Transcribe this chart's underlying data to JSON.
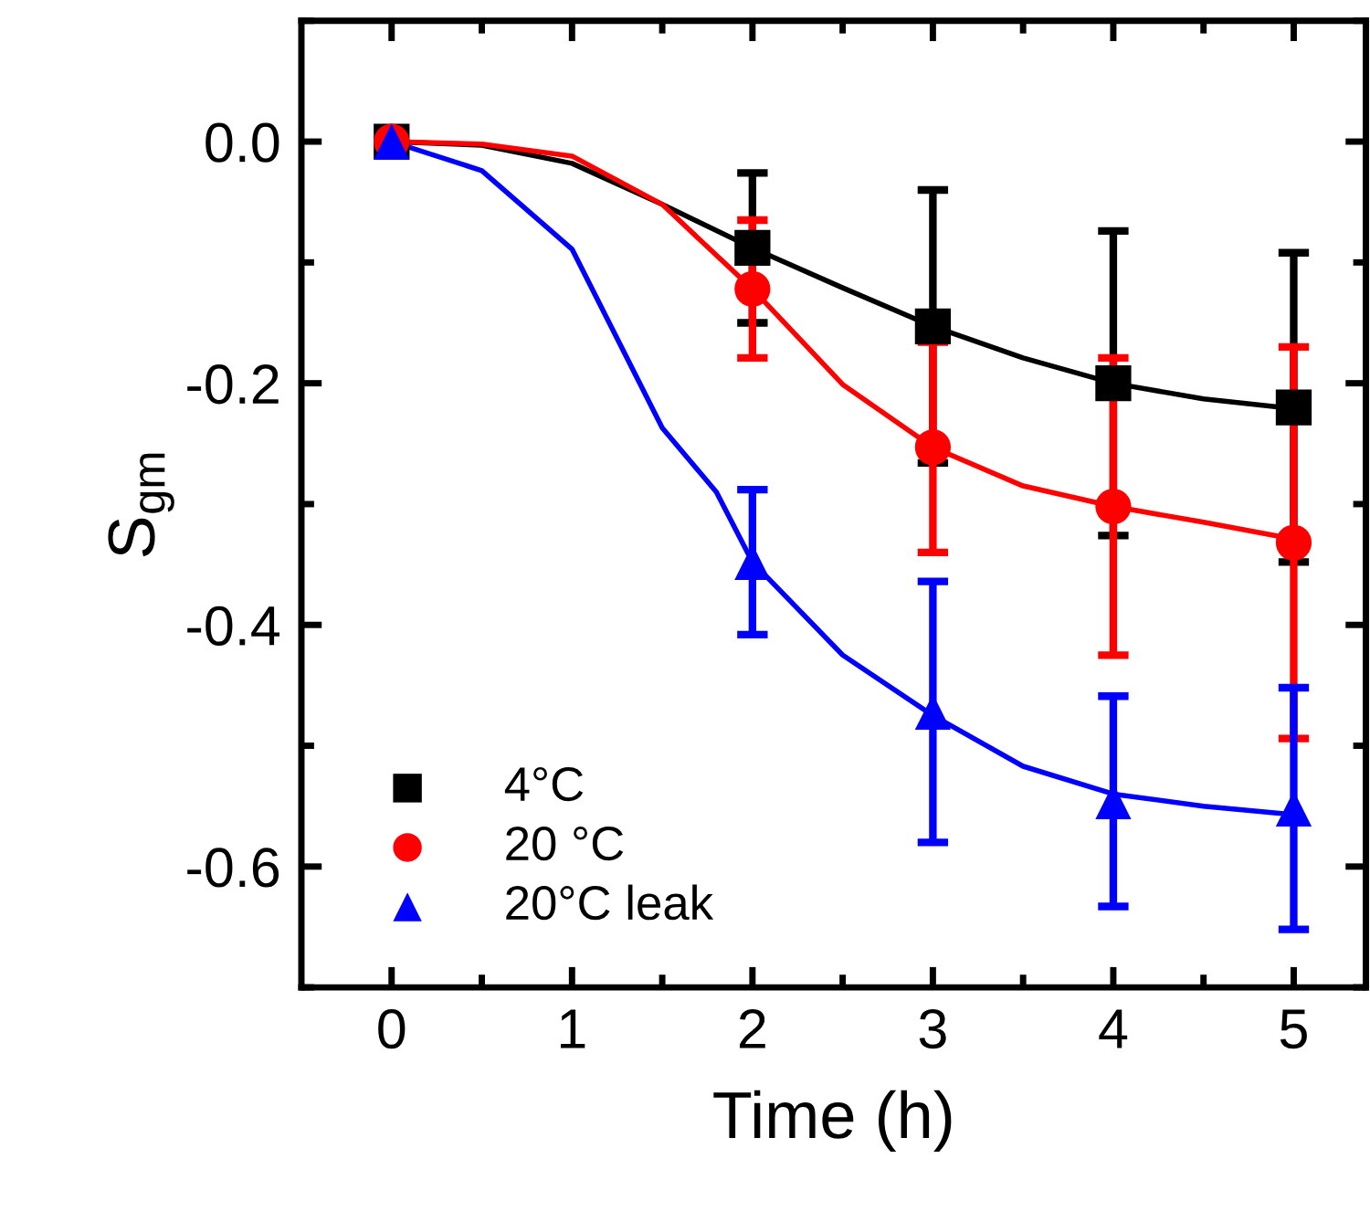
{
  "chart_data": {
    "type": "scatter",
    "xlabel": "Time (h)",
    "ylabel": "S$_{gm}$",
    "xlim": [
      -0.5,
      5.4
    ],
    "ylim": [
      -0.7,
      0.1
    ],
    "xticks": [
      0,
      {
        "value": 0.5,
        "label": null
      },
      1,
      {
        "value": 1.5,
        "label": null
      },
      2,
      {
        "value": 2.5,
        "label": null
      },
      3,
      {
        "value": 3.5,
        "label": null
      },
      4,
      {
        "value": 4.5,
        "label": null
      },
      5
    ],
    "yticks": [
      {
        "value": -0.7,
        "label": null
      },
      {
        "value": -0.6,
        "label": "-0.6"
      },
      {
        "value": -0.5,
        "label": null
      },
      {
        "value": -0.4,
        "label": "-0.4"
      },
      {
        "value": -0.3,
        "label": null
      },
      {
        "value": -0.2,
        "label": "-0.2"
      },
      {
        "value": -0.1,
        "label": null
      },
      {
        "value": 0,
        "label": "0.0"
      },
      {
        "value": 0.1,
        "label": null
      }
    ],
    "legend": "bottom left",
    "grid": false,
    "series": [
      {
        "name": "4°C",
        "marker": "square",
        "color": "#000000",
        "x": [
          0,
          2,
          3,
          4,
          5
        ],
        "values": [
          0,
          -0.088,
          -0.153,
          -0.2,
          -0.22
        ],
        "errors": [
          null,
          0.062,
          0.113,
          0.126,
          0.128
        ]
      },
      {
        "name": "20 °C",
        "marker": "circle",
        "color": "#ff0000",
        "x": [
          0,
          2,
          3,
          4,
          5
        ],
        "values": [
          0,
          -0.122,
          -0.253,
          -0.302,
          -0.332
        ],
        "errors": [
          null,
          0.057,
          0.087,
          0.123,
          0.162
        ]
      },
      {
        "name": "20°C leak",
        "marker": "triangle",
        "color": "#0000ff",
        "x": [
          0,
          2,
          3,
          4,
          5
        ],
        "values": [
          0,
          -0.348,
          -0.472,
          -0.546,
          -0.552
        ],
        "errors": [
          null,
          0.06,
          0.108,
          0.087,
          0.1
        ]
      },
      {
        "type": "line",
        "color": "#000000",
        "x": [
          0,
          0.5,
          1,
          1.5,
          2,
          2.5,
          3,
          3.5,
          4,
          4.5,
          5
        ],
        "values": [
          0,
          -0.003,
          -0.018,
          -0.052,
          -0.088,
          -0.121,
          -0.153,
          -0.179,
          -0.2,
          -0.213,
          -0.221
        ]
      },
      {
        "type": "line",
        "color": "#ff0000",
        "x": [
          0,
          0.5,
          1,
          1.5,
          2,
          2.5,
          3,
          3.5,
          4,
          4.5,
          5
        ],
        "values": [
          0,
          -0.002,
          -0.012,
          -0.052,
          -0.122,
          -0.201,
          -0.253,
          -0.285,
          -0.302,
          -0.315,
          -0.329
        ]
      },
      {
        "type": "line",
        "color": "#0000ff",
        "x": [
          0,
          0.5,
          1,
          1.5,
          1.8,
          2,
          2.5,
          3,
          3.5,
          4,
          4.5,
          5
        ],
        "values": [
          0,
          -0.024,
          -0.089,
          -0.237,
          -0.29,
          -0.348,
          -0.425,
          -0.475,
          -0.517,
          -0.54,
          -0.55,
          -0.557
        ]
      }
    ]
  }
}
